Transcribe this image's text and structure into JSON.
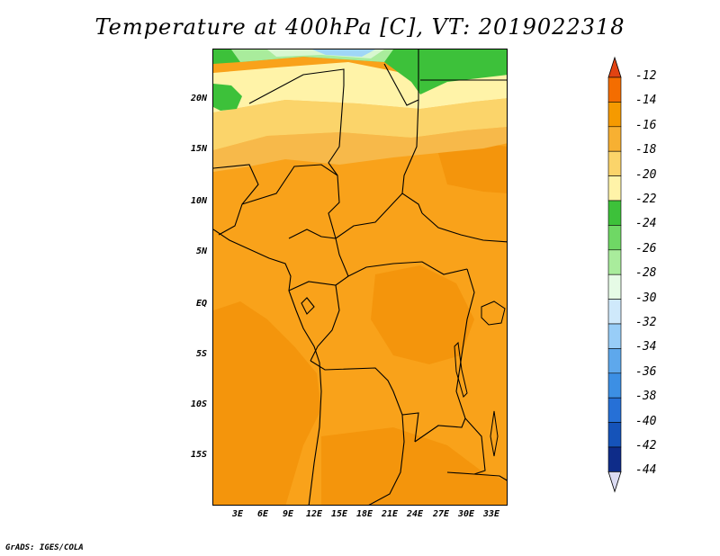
{
  "title": "Temperature at 400hPa [C], VT: 2019022318",
  "footer": "GrADS: IGES/COLA",
  "lat_labels": [
    "20N",
    "15N",
    "10N",
    "5N",
    "EQ",
    "5S",
    "10S",
    "15S"
  ],
  "lon_labels": [
    "3E",
    "6E",
    "9E",
    "12E",
    "15E",
    "18E",
    "21E",
    "24E",
    "27E",
    "30E",
    "33E"
  ],
  "colorbar": {
    "labels": [
      "-12",
      "-14",
      "-16",
      "-18",
      "-20",
      "-22",
      "-24",
      "-26",
      "-28",
      "-30",
      "-32",
      "-34",
      "-36",
      "-38",
      "-40",
      "-42",
      "-44"
    ],
    "colors": [
      "#e74a14",
      "#f46d00",
      "#f59a00",
      "#f7b032",
      "#fbd46a",
      "#fff3a8",
      "#3dc13a",
      "#6fd865",
      "#a9ec9c",
      "#e6fbe6",
      "#cfe9fb",
      "#98cdf7",
      "#5ea8ec",
      "#3c8fe4",
      "#2670d6",
      "#1553b9",
      "#0e2c89",
      "#0a1a5c"
    ],
    "end_colors": {
      "top": "#e24312",
      "bottom": "#dcdcf3"
    }
  },
  "map_colors": {
    "base": "#f9a21a",
    "darker": "#f4950c",
    "light_orange": "#f7b94a",
    "yellow": "#fbd46a",
    "pale_yellow": "#fff3a8",
    "green": "#3dc13a",
    "light_green": "#a9ec9c",
    "pale_green": "#d8f7d0",
    "light_blue": "#9fd6f7"
  }
}
